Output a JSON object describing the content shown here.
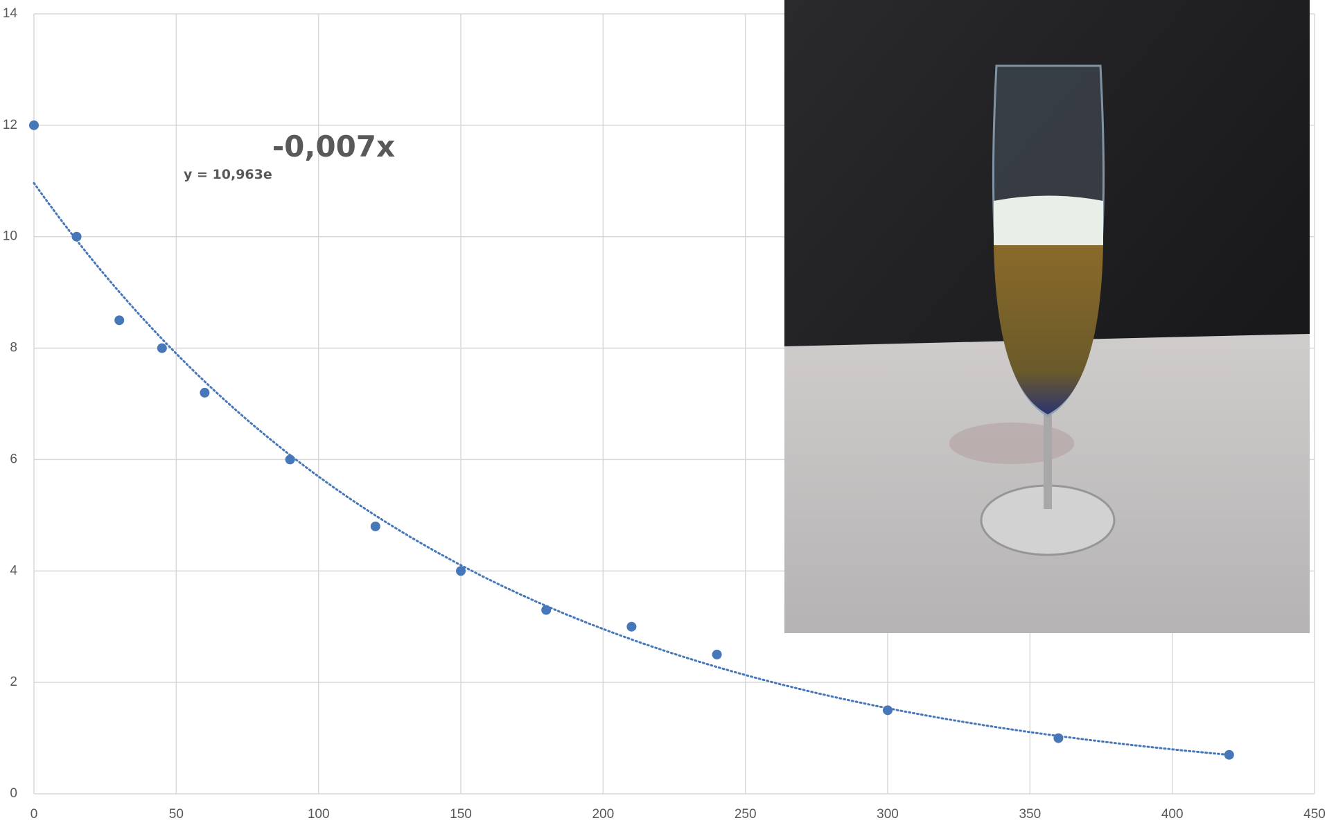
{
  "chart_data": {
    "type": "scatter",
    "equation": {
      "base": "y = 10,963e",
      "exponent": "-0,007x"
    },
    "series": [
      {
        "color": "#4677b8",
        "x": [
          0,
          15,
          30,
          45,
          60,
          90,
          120,
          150,
          180,
          210,
          240,
          300,
          360,
          420
        ],
        "values": [
          12,
          10,
          8.5,
          8,
          7.2,
          6,
          4.8,
          4,
          3.3,
          3,
          2.5,
          1.5,
          1,
          0.7
        ]
      }
    ],
    "trendline": "exponential",
    "xlim": [
      0,
      450
    ],
    "xticks": [
      0,
      50,
      100,
      150,
      200,
      250,
      300,
      350,
      400,
      450
    ],
    "ylim": [
      0,
      14
    ],
    "yticks": [
      0,
      2,
      4,
      6,
      8,
      10,
      12,
      14
    ],
    "grid": true
  }
}
